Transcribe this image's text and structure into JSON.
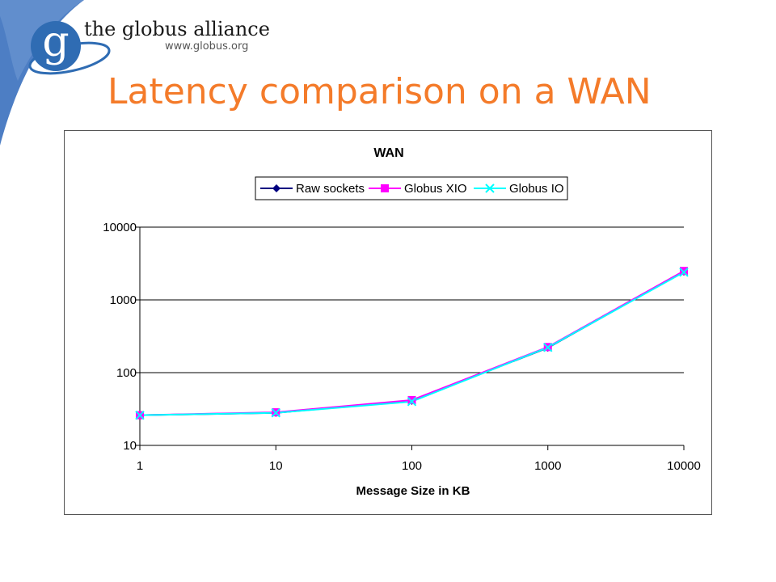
{
  "header": {
    "org_name": "the globus alliance",
    "org_url": "www.globus.org",
    "logo_letter": "g",
    "title": "Latency comparison on a WAN"
  },
  "colors": {
    "title": "#f47b2a",
    "brand_blue": "#2f6cb3",
    "series": [
      "#000080",
      "#ff00ff",
      "#00ffff"
    ]
  },
  "chart_data": {
    "type": "line",
    "title": "WAN",
    "xlabel": "Message Size in KB",
    "ylabel": "",
    "x_scale": "log",
    "y_scale": "log",
    "xlim": [
      1,
      10000
    ],
    "ylim": [
      10,
      10000
    ],
    "x_ticks": [
      "1",
      "10",
      "100",
      "1000",
      "10000"
    ],
    "y_ticks": [
      "10",
      "100",
      "1000",
      "10000"
    ],
    "x": [
      1,
      10,
      100,
      1000,
      10000
    ],
    "series": [
      {
        "name": "Raw sockets",
        "values": [
          26,
          28,
          41,
          220,
          2450
        ]
      },
      {
        "name": "Globus XIO",
        "values": [
          26,
          28.5,
          42,
          225,
          2500
        ]
      },
      {
        "name": "Globus IO",
        "values": [
          26,
          28,
          40,
          222,
          2400
        ]
      }
    ],
    "grid": "horizontal",
    "legend_position": "top"
  }
}
